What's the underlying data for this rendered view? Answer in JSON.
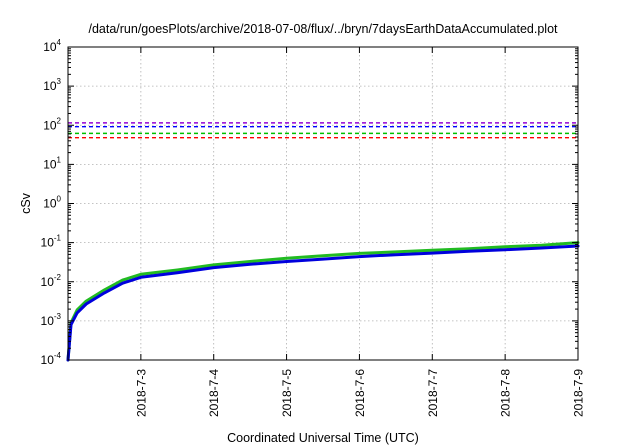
{
  "chart_data": {
    "type": "line",
    "title": "/data/run/goesPlots/archive/2018-07-08/flux/../bryn/7daysEarthDataAccumulated.plot",
    "xlabel": "Coordinated Universal Time (UTC)",
    "ylabel": "cSv",
    "yscale": "log",
    "ylim": [
      0.0001,
      10000
    ],
    "xlim": [
      "2018-07-02",
      "2018-07-09"
    ],
    "grid": true,
    "x_ticks": [
      "2018-7-3",
      "2018-7-4",
      "2018-7-5",
      "2018-7-6",
      "2018-7-7",
      "2018-7-8",
      "2018-7-9"
    ],
    "y_ticks": [
      {
        "value": 0.0001,
        "base": "10",
        "exp": "-4"
      },
      {
        "value": 0.001,
        "base": "10",
        "exp": "-3"
      },
      {
        "value": 0.01,
        "base": "10",
        "exp": "-2"
      },
      {
        "value": 0.1,
        "base": "10",
        "exp": "-1"
      },
      {
        "value": 1,
        "base": "10",
        "exp": "0"
      },
      {
        "value": 10,
        "base": "10",
        "exp": "1"
      },
      {
        "value": 100,
        "base": "10",
        "exp": "2"
      },
      {
        "value": 1000,
        "base": "10",
        "exp": "3"
      },
      {
        "value": 10000,
        "base": "10",
        "exp": "4"
      }
    ],
    "reference_lines": [
      {
        "value": 115,
        "color": "#9400d3"
      },
      {
        "value": 92,
        "color": "#0000ff"
      },
      {
        "value": 62,
        "color": "#00c000"
      },
      {
        "value": 48,
        "color": "#ff0000"
      }
    ],
    "series": [
      {
        "color": "#22bb22",
        "x": [
          "2018-07-02 00:00",
          "2018-07-02 01:00",
          "2018-07-02 03:00",
          "2018-07-02 06:00",
          "2018-07-02 12:00",
          "2018-07-02 18:00",
          "2018-07-03 00:00",
          "2018-07-03 12:00",
          "2018-07-04 00:00",
          "2018-07-04 12:00",
          "2018-07-05 00:00",
          "2018-07-05 12:00",
          "2018-07-06 00:00",
          "2018-07-06 12:00",
          "2018-07-07 00:00",
          "2018-07-07 12:00",
          "2018-07-08 00:00",
          "2018-07-08 12:00",
          "2018-07-09 00:00"
        ],
        "values": [
          0.0001,
          0.0009,
          0.0019,
          0.0032,
          0.0062,
          0.011,
          0.0155,
          0.02,
          0.027,
          0.033,
          0.04,
          0.046,
          0.053,
          0.058,
          0.064,
          0.07,
          0.078,
          0.086,
          0.1
        ]
      },
      {
        "color": "#0000dd",
        "x": [
          "2018-07-02 00:00",
          "2018-07-02 01:00",
          "2018-07-02 03:00",
          "2018-07-02 06:00",
          "2018-07-02 12:00",
          "2018-07-02 18:00",
          "2018-07-03 00:00",
          "2018-07-03 12:00",
          "2018-07-04 00:00",
          "2018-07-04 12:00",
          "2018-07-05 00:00",
          "2018-07-05 12:00",
          "2018-07-06 00:00",
          "2018-07-06 12:00",
          "2018-07-07 00:00",
          "2018-07-07 12:00",
          "2018-07-08 00:00",
          "2018-07-08 12:00",
          "2018-07-09 00:00"
        ],
        "values": [
          0.0001,
          0.0008,
          0.0016,
          0.0027,
          0.0052,
          0.0092,
          0.013,
          0.017,
          0.023,
          0.028,
          0.033,
          0.038,
          0.044,
          0.049,
          0.054,
          0.06,
          0.066,
          0.073,
          0.082
        ]
      }
    ]
  }
}
